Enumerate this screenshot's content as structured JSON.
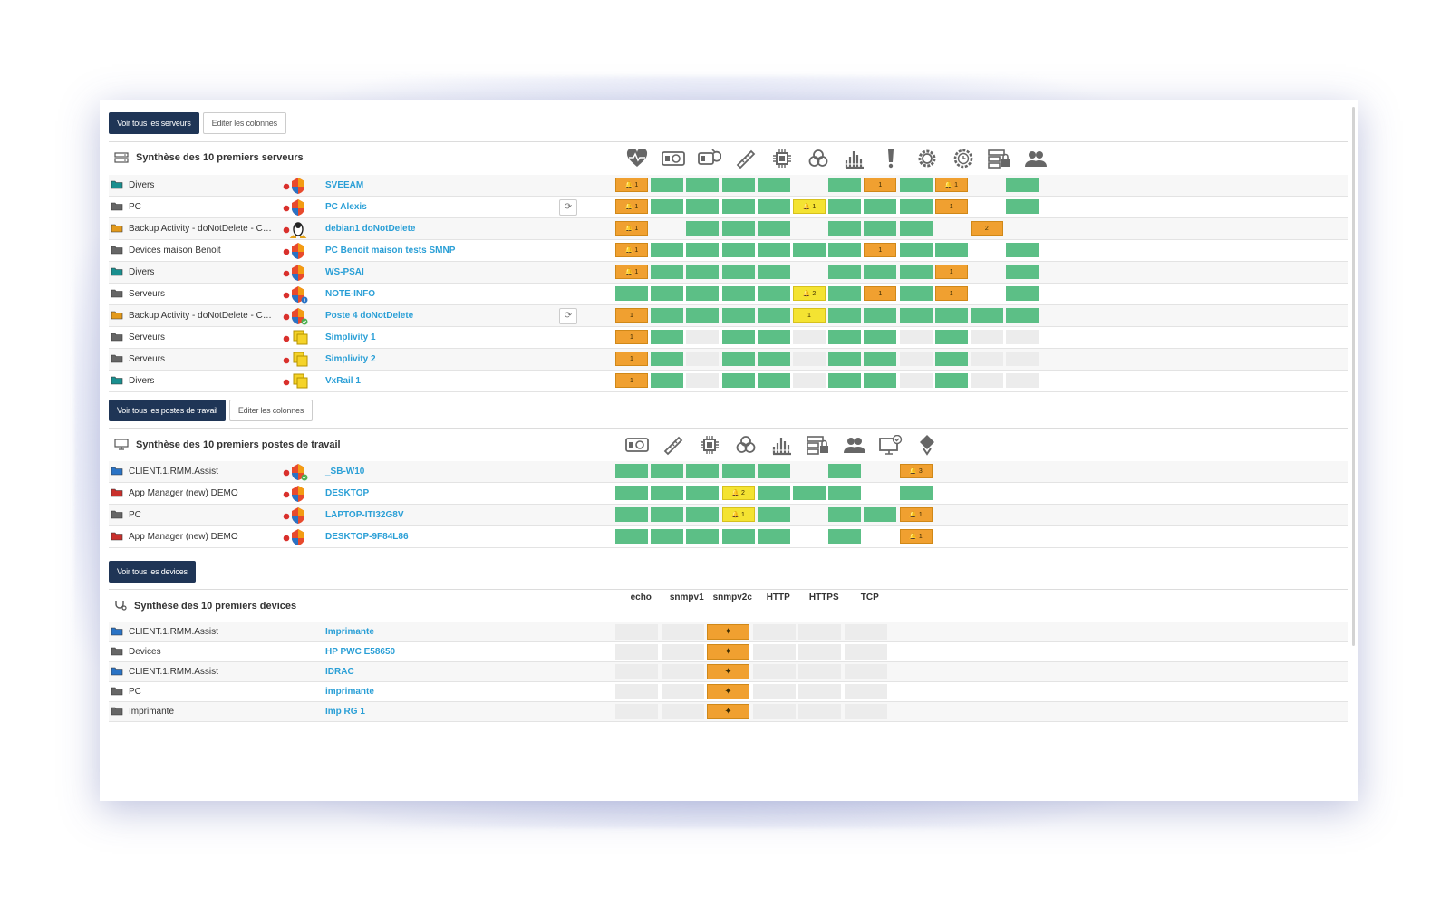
{
  "servers": {
    "view_all_button": "Voir tous les serveurs",
    "edit_columns_button": "Editer les colonnes",
    "title": "Synthèse des 10 premiers serveurs",
    "columns": [
      "heartbeat-icon",
      "disk-icon",
      "disk-sync-icon",
      "ruler-icon",
      "cpu-icon",
      "biohazard-icon",
      "network-bars-icon",
      "exclamation-icon",
      "gear-icon",
      "clock-gear-icon",
      "server-lock-icon",
      "users-icon"
    ],
    "rows": [
      {
        "group": "Divers",
        "folder_color": "#1a8f8f",
        "os": "windows",
        "badge": "",
        "host": "SVEEAM",
        "refresh": false,
        "cells": [
          {
            "s": "o",
            "t": "🔔 1"
          },
          {
            "s": "g"
          },
          {
            "s": "g"
          },
          {
            "s": "g"
          },
          {
            "s": "g"
          },
          {
            "s": "e"
          },
          {
            "s": "g"
          },
          {
            "s": "o",
            "t": "1"
          },
          {
            "s": "g"
          },
          {
            "s": "o",
            "t": "🔔 1"
          },
          {
            "s": "e"
          },
          {
            "s": "g"
          }
        ]
      },
      {
        "group": "PC",
        "folder_color": "#666666",
        "os": "windows",
        "badge": "",
        "host": "PC Alexis",
        "refresh": true,
        "cells": [
          {
            "s": "o",
            "t": "🔔 1"
          },
          {
            "s": "g"
          },
          {
            "s": "g"
          },
          {
            "s": "g"
          },
          {
            "s": "g"
          },
          {
            "s": "y",
            "t": "🔔 1"
          },
          {
            "s": "g"
          },
          {
            "s": "g"
          },
          {
            "s": "g"
          },
          {
            "s": "o",
            "t": "1"
          },
          {
            "s": "e"
          },
          {
            "s": "g"
          }
        ]
      },
      {
        "group": "Backup Activity - doNotDelete - Cli...",
        "folder_color": "#e39a1c",
        "os": "linux",
        "badge": "",
        "host": "debian1 doNotDelete",
        "refresh": false,
        "cells": [
          {
            "s": "o",
            "t": "🔔 1"
          },
          {
            "s": "e"
          },
          {
            "s": "g"
          },
          {
            "s": "g"
          },
          {
            "s": "g"
          },
          {
            "s": "e"
          },
          {
            "s": "g"
          },
          {
            "s": "g"
          },
          {
            "s": "g"
          },
          {
            "s": "e"
          },
          {
            "s": "o",
            "t": "2"
          },
          {
            "s": "e"
          }
        ]
      },
      {
        "group": "Devices maison Benoit",
        "folder_color": "#666666",
        "os": "windows",
        "badge": "",
        "host": "PC Benoit maison tests SMNP",
        "refresh": false,
        "cells": [
          {
            "s": "o",
            "t": "🔔 1"
          },
          {
            "s": "g"
          },
          {
            "s": "g"
          },
          {
            "s": "g"
          },
          {
            "s": "g"
          },
          {
            "s": "g"
          },
          {
            "s": "g"
          },
          {
            "s": "o",
            "t": "1"
          },
          {
            "s": "g"
          },
          {
            "s": "g"
          },
          {
            "s": "e"
          },
          {
            "s": "g"
          }
        ]
      },
      {
        "group": "Divers",
        "folder_color": "#1a8f8f",
        "os": "windows",
        "badge": "",
        "host": "WS-PSAI",
        "refresh": false,
        "cells": [
          {
            "s": "o",
            "t": "🔔 1"
          },
          {
            "s": "g"
          },
          {
            "s": "g"
          },
          {
            "s": "g"
          },
          {
            "s": "g"
          },
          {
            "s": "e"
          },
          {
            "s": "g"
          },
          {
            "s": "g"
          },
          {
            "s": "g"
          },
          {
            "s": "o",
            "t": "1"
          },
          {
            "s": "e"
          },
          {
            "s": "g"
          }
        ]
      },
      {
        "group": "Serveurs",
        "folder_color": "#666666",
        "os": "windows",
        "badge": "info",
        "host": "NOTE-INFO",
        "refresh": false,
        "cells": [
          {
            "s": "g"
          },
          {
            "s": "g"
          },
          {
            "s": "g"
          },
          {
            "s": "g"
          },
          {
            "s": "g"
          },
          {
            "s": "y",
            "t": "🔔 2"
          },
          {
            "s": "g"
          },
          {
            "s": "o",
            "t": "1"
          },
          {
            "s": "g"
          },
          {
            "s": "o",
            "t": "1"
          },
          {
            "s": "e"
          },
          {
            "s": "g"
          }
        ]
      },
      {
        "group": "Backup Activity - doNotDelete - Cli...",
        "folder_color": "#e39a1c",
        "os": "windows",
        "badge": "ok",
        "host": "Poste 4 doNotDelete",
        "refresh": true,
        "cells": [
          {
            "s": "o",
            "t": "1"
          },
          {
            "s": "g"
          },
          {
            "s": "g"
          },
          {
            "s": "g"
          },
          {
            "s": "g"
          },
          {
            "s": "y",
            "t": "1"
          },
          {
            "s": "g"
          },
          {
            "s": "g"
          },
          {
            "s": "g"
          },
          {
            "s": "g"
          },
          {
            "s": "g"
          },
          {
            "s": "g"
          }
        ]
      },
      {
        "group": "Serveurs",
        "folder_color": "#666666",
        "os": "vmware",
        "badge": "",
        "host": "Simplivity 1",
        "refresh": false,
        "cells": [
          {
            "s": "o",
            "t": "1"
          },
          {
            "s": "g"
          },
          {
            "s": "l"
          },
          {
            "s": "g"
          },
          {
            "s": "g"
          },
          {
            "s": "l"
          },
          {
            "s": "g"
          },
          {
            "s": "g"
          },
          {
            "s": "l"
          },
          {
            "s": "g"
          },
          {
            "s": "l"
          },
          {
            "s": "l"
          }
        ]
      },
      {
        "group": "Serveurs",
        "folder_color": "#666666",
        "os": "vmware",
        "badge": "",
        "host": "Simplivity 2",
        "refresh": false,
        "cells": [
          {
            "s": "o",
            "t": "1"
          },
          {
            "s": "g"
          },
          {
            "s": "l"
          },
          {
            "s": "g"
          },
          {
            "s": "g"
          },
          {
            "s": "l"
          },
          {
            "s": "g"
          },
          {
            "s": "g"
          },
          {
            "s": "l"
          },
          {
            "s": "g"
          },
          {
            "s": "l"
          },
          {
            "s": "l"
          }
        ]
      },
      {
        "group": "Divers",
        "folder_color": "#1a8f8f",
        "os": "vmware",
        "badge": "",
        "host": "VxRail 1",
        "refresh": false,
        "cells": [
          {
            "s": "o",
            "t": "1"
          },
          {
            "s": "g"
          },
          {
            "s": "l"
          },
          {
            "s": "g"
          },
          {
            "s": "g"
          },
          {
            "s": "l"
          },
          {
            "s": "g"
          },
          {
            "s": "g"
          },
          {
            "s": "l"
          },
          {
            "s": "g"
          },
          {
            "s": "l"
          },
          {
            "s": "l"
          }
        ]
      }
    ]
  },
  "workstations": {
    "view_all_button": "Voir tous les postes de travail",
    "edit_columns_button": "Editer les colonnes",
    "title": "Synthèse des 10 premiers postes de travail",
    "columns": [
      "disk-icon",
      "ruler-icon",
      "cpu-icon",
      "biohazard-icon",
      "network-bars-icon",
      "server-lock-icon",
      "users-icon",
      "monitor-check-icon",
      "patch-icon"
    ],
    "rows": [
      {
        "group": "CLIENT.1.RMM.Assist",
        "folder_color": "#2a73c5",
        "os": "windows",
        "badge": "ok",
        "host": "_SB-W10",
        "cells": [
          {
            "s": "g"
          },
          {
            "s": "g"
          },
          {
            "s": "g"
          },
          {
            "s": "g"
          },
          {
            "s": "g"
          },
          {
            "s": "e"
          },
          {
            "s": "g"
          },
          {
            "s": "e"
          },
          {
            "s": "o",
            "t": "🔔 3"
          }
        ]
      },
      {
        "group": "App Manager (new) DEMO",
        "folder_color": "#c9302c",
        "os": "windows",
        "badge": "",
        "host": "DESKTOP",
        "cells": [
          {
            "s": "g"
          },
          {
            "s": "g"
          },
          {
            "s": "g"
          },
          {
            "s": "y",
            "t": "🔔 2"
          },
          {
            "s": "g"
          },
          {
            "s": "g"
          },
          {
            "s": "g"
          },
          {
            "s": "e"
          },
          {
            "s": "g"
          }
        ]
      },
      {
        "group": "PC",
        "folder_color": "#666666",
        "os": "windows",
        "badge": "",
        "host": "LAPTOP-ITI32G8V",
        "cells": [
          {
            "s": "g"
          },
          {
            "s": "g"
          },
          {
            "s": "g"
          },
          {
            "s": "y",
            "t": "🔔 1"
          },
          {
            "s": "g"
          },
          {
            "s": "e"
          },
          {
            "s": "g"
          },
          {
            "s": "g"
          },
          {
            "s": "o",
            "t": "🔔 1"
          }
        ]
      },
      {
        "group": "App Manager (new) DEMO",
        "folder_color": "#c9302c",
        "os": "windows",
        "badge": "",
        "host": "DESKTOP-9F84L86",
        "cells": [
          {
            "s": "g"
          },
          {
            "s": "g"
          },
          {
            "s": "g"
          },
          {
            "s": "g"
          },
          {
            "s": "g"
          },
          {
            "s": "e"
          },
          {
            "s": "g"
          },
          {
            "s": "e"
          },
          {
            "s": "o",
            "t": "🔔 1"
          }
        ]
      }
    ]
  },
  "devices": {
    "view_all_button": "Voir tous les devices",
    "title": "Synthèse des 10 premiers devices",
    "columns": [
      "echo",
      "snmpv1",
      "snmpv2c",
      "HTTP",
      "HTTPS",
      "TCP"
    ],
    "rows": [
      {
        "group": "CLIENT.1.RMM.Assist",
        "folder_color": "#2a73c5",
        "host": "Imprimante",
        "cells": [
          "l",
          "l",
          "o",
          "l",
          "l",
          "l"
        ]
      },
      {
        "group": "Devices",
        "folder_color": "#666666",
        "host": "HP PWC E58650",
        "cells": [
          "l",
          "l",
          "o",
          "l",
          "l",
          "l"
        ]
      },
      {
        "group": "CLIENT.1.RMM.Assist",
        "folder_color": "#2a73c5",
        "host": "IDRAC",
        "cells": [
          "l",
          "l",
          "o",
          "l",
          "l",
          "l"
        ]
      },
      {
        "group": "PC",
        "folder_color": "#666666",
        "host": "imprimante",
        "cells": [
          "l",
          "l",
          "o",
          "l",
          "l",
          "l"
        ]
      },
      {
        "group": "Imprimante",
        "folder_color": "#666666",
        "host": "Imp RG 1",
        "cells": [
          "l",
          "l",
          "o",
          "l",
          "l",
          "l"
        ]
      }
    ]
  },
  "colors": {
    "ok": "#5cbf86",
    "warning": "#f0a030",
    "notice": "#f4e332",
    "empty": "#ececec",
    "link": "#2a9fd6",
    "button": "#1f3556"
  }
}
